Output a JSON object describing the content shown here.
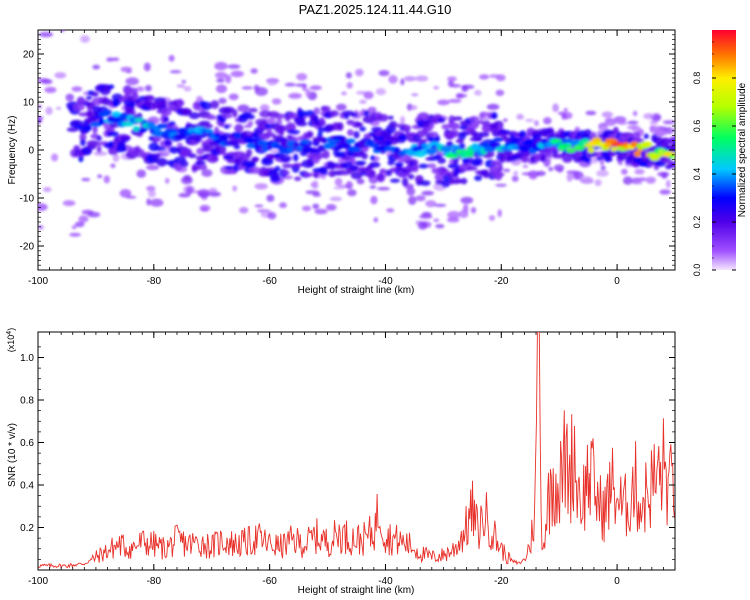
{
  "title": "PAZ1.2025.124.11.44.G10",
  "chart_data": [
    {
      "type": "heatmap",
      "xlabel": "Height of straight line (km)",
      "ylabel": "Frequency (Hz)",
      "xlim": [
        -100,
        10
      ],
      "ylim": [
        -25,
        25
      ],
      "x_ticks": [
        -100,
        -80,
        -60,
        -40,
        -20,
        0
      ],
      "y_ticks": [
        -20,
        -10,
        0,
        10,
        20
      ],
      "colorbar": {
        "label": "Normalized spectral amplitude",
        "range": [
          0,
          1
        ],
        "ticks": [
          0.0,
          0.2,
          0.4,
          0.6,
          0.8
        ]
      },
      "ridge": {
        "x": [
          -98,
          -95,
          -92,
          -90,
          -88,
          -85,
          -82,
          -80,
          -77,
          -75,
          -72,
          -70,
          -67,
          -65,
          -62,
          -60,
          -57,
          -55,
          -52,
          -50,
          -47,
          -45,
          -42,
          -40,
          -37,
          -35,
          -32,
          -30,
          -27,
          -25,
          -22,
          -20,
          -17,
          -15,
          -12,
          -10,
          -7,
          -5,
          -2,
          0,
          3,
          5,
          8,
          10
        ],
        "freq": [
          8,
          6,
          5,
          6,
          7,
          6,
          5,
          4,
          4,
          3,
          3,
          3,
          2,
          2,
          2,
          1,
          1,
          1,
          1,
          2,
          1,
          1,
          1,
          1,
          0,
          0,
          0,
          0,
          0,
          0,
          1,
          1,
          1,
          1,
          1,
          1,
          1,
          1,
          1,
          1,
          0,
          0,
          -1,
          0
        ],
        "amplitude": [
          0.2,
          0.25,
          0.3,
          0.35,
          0.4,
          0.45,
          0.45,
          0.45,
          0.4,
          0.4,
          0.4,
          0.4,
          0.35,
          0.35,
          0.35,
          0.35,
          0.35,
          0.35,
          0.35,
          0.35,
          0.35,
          0.35,
          0.35,
          0.35,
          0.35,
          0.4,
          0.45,
          0.5,
          0.55,
          0.5,
          0.45,
          0.45,
          0.4,
          0.4,
          0.45,
          0.55,
          0.6,
          0.75,
          0.85,
          0.95,
          0.95,
          0.95,
          0.85,
          0.7
        ]
      }
    },
    {
      "type": "line",
      "xlabel": "Height of straight line (km)",
      "ylabel": "SNR (10 * v/v)",
      "y_scale_label": "(x10",
      "y_scale_exponent": "4",
      "y_scale_suffix": ")",
      "xlim": [
        -100,
        10
      ],
      "ylim": [
        0,
        1.12
      ],
      "x_ticks": [
        -100,
        -80,
        -60,
        -40,
        -20,
        0
      ],
      "y_ticks": [
        0.2,
        0.4,
        0.6,
        0.8,
        1.0
      ],
      "series": [
        {
          "color": "#e8312a",
          "x": [
            -100,
            -95,
            -92,
            -90,
            -88,
            -86,
            -84,
            -82,
            -80,
            -78,
            -76,
            -74,
            -72,
            -70,
            -68,
            -66,
            -64,
            -62,
            -60,
            -58,
            -56,
            -54,
            -52,
            -50,
            -48,
            -46,
            -44,
            -42,
            -41,
            -40,
            -38,
            -36,
            -34,
            -32,
            -30,
            -28,
            -26,
            -25,
            -24,
            -23,
            -22,
            -21,
            -20,
            -19,
            -18,
            -17,
            -16,
            -15,
            -14.5,
            -14,
            -13.6,
            -13.2,
            -12.8,
            -12,
            -11,
            -10,
            -9,
            -8,
            -7.5,
            -7,
            -6,
            -5,
            -4,
            -3,
            -2,
            -1,
            0,
            1,
            2,
            3,
            4,
            5,
            6,
            7,
            8,
            9,
            10
          ],
          "y": [
            0.02,
            0.02,
            0.03,
            0.06,
            0.09,
            0.12,
            0.1,
            0.13,
            0.12,
            0.1,
            0.14,
            0.12,
            0.13,
            0.11,
            0.14,
            0.12,
            0.13,
            0.15,
            0.12,
            0.11,
            0.14,
            0.12,
            0.16,
            0.13,
            0.17,
            0.15,
            0.14,
            0.18,
            0.3,
            0.16,
            0.14,
            0.12,
            0.08,
            0.06,
            0.07,
            0.1,
            0.2,
            0.28,
            0.18,
            0.26,
            0.22,
            0.15,
            0.1,
            0.06,
            0.04,
            0.03,
            0.05,
            0.12,
            0.2,
            0.45,
            1.12,
            0.35,
            0.1,
            0.3,
            0.45,
            0.38,
            0.52,
            0.45,
            0.6,
            0.42,
            0.32,
            0.45,
            0.4,
            0.3,
            0.28,
            0.4,
            0.35,
            0.28,
            0.32,
            0.42,
            0.3,
            0.35,
            0.4,
            0.43,
            0.48,
            0.38,
            0.42
          ]
        }
      ]
    }
  ]
}
